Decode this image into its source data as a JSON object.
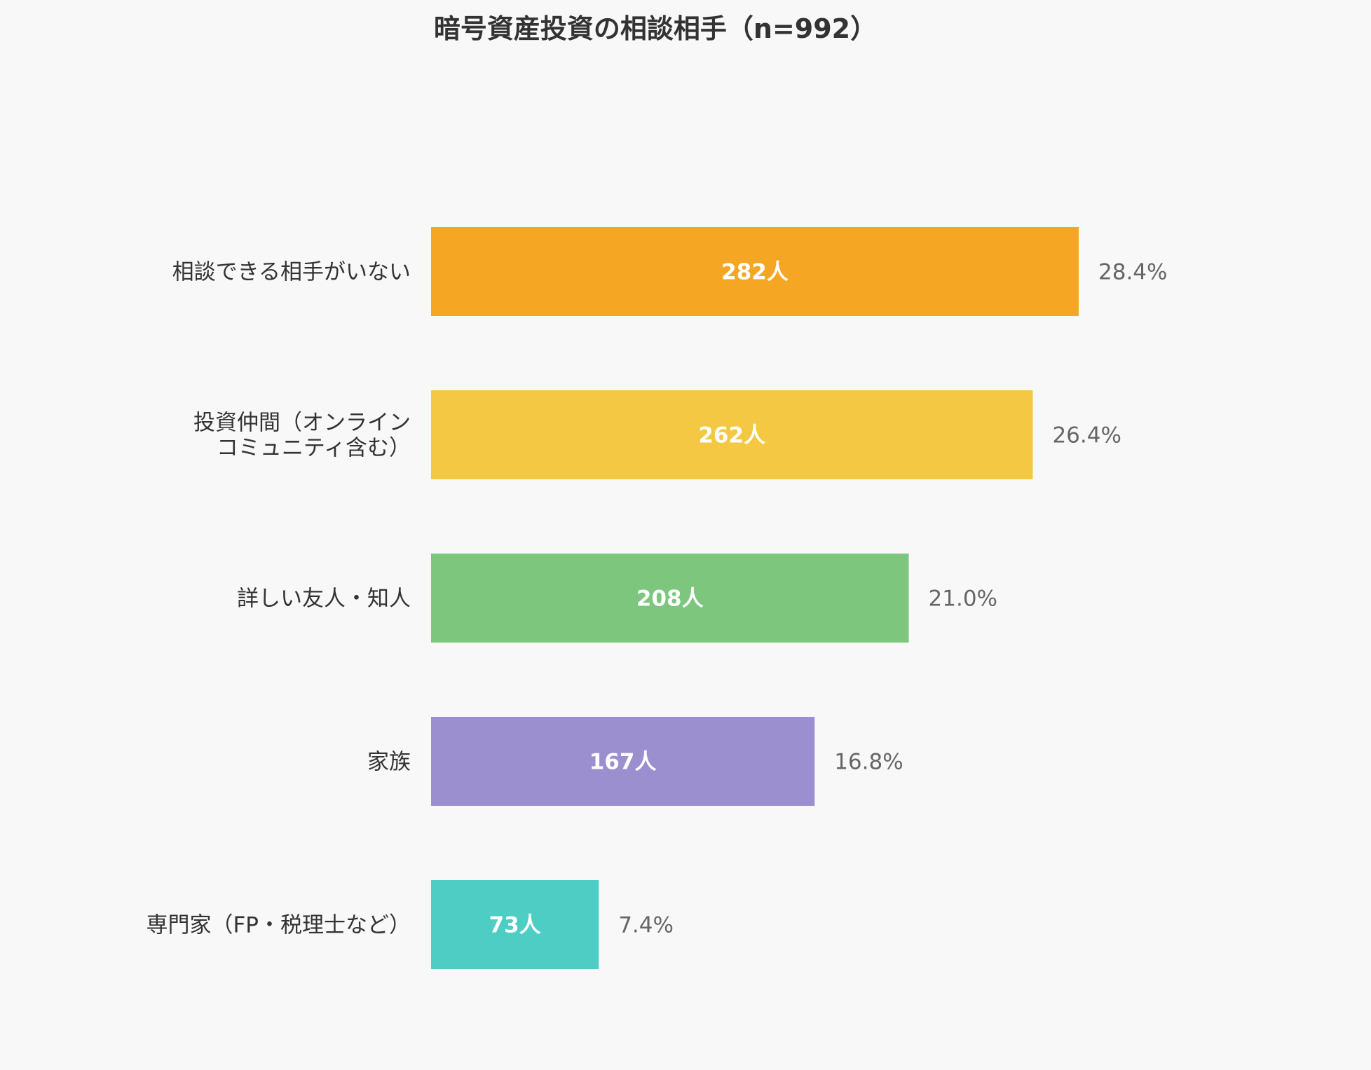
{
  "chart_data": {
    "type": "bar",
    "orientation": "horizontal",
    "title": "暗号資産投資の相談相手（n=992）",
    "categories": [
      [
        "相談できる相手がいない"
      ],
      [
        "投資仲間（オンライン",
        "コミュニティ含む）"
      ],
      [
        "詳しい友人・知人"
      ],
      [
        "家族"
      ],
      [
        "専門家（FP・税理士など）"
      ]
    ],
    "values": [
      282,
      262,
      208,
      167,
      73
    ],
    "value_labels": [
      "282人",
      "262人",
      "208人",
      "167人",
      "73人"
    ],
    "percent_labels": [
      "28.4%",
      "26.4%",
      "21.0%",
      "16.8%",
      "7.4%"
    ],
    "colors": [
      "#F5A623",
      "#F4C842",
      "#7DC67E",
      "#9B8FCF",
      "#4ECDC4"
    ],
    "xlabel": "",
    "ylabel": "",
    "grid": false
  }
}
